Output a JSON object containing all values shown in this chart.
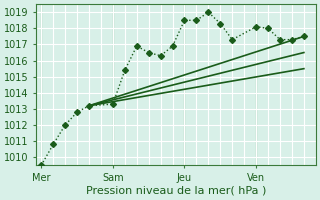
{
  "title": "",
  "xlabel": "Pression niveau de la mer( hPa )",
  "ylabel": "",
  "background_color": "#d8f0e8",
  "grid_color": "#ffffff",
  "line_color": "#1a5c1a",
  "ylim": [
    1009.5,
    1019.5
  ],
  "day_labels": [
    "Mer",
    "Sam",
    "Jeu",
    "Ven"
  ],
  "day_positions": [
    0,
    3,
    6,
    9
  ],
  "series": [
    {
      "x": [
        0,
        0.5,
        1.0,
        1.5,
        2.0,
        3.0,
        3.5,
        4.0,
        4.5,
        5.0,
        5.5,
        6.0,
        6.5,
        7.0,
        7.5,
        8.0,
        9.0,
        9.5,
        10.0,
        10.5,
        11.0
      ],
      "y": [
        1009.5,
        1010.8,
        1012.0,
        1012.8,
        1013.2,
        1013.3,
        1015.4,
        1016.9,
        1016.5,
        1016.3,
        1016.9,
        1018.5,
        1018.5,
        1019.0,
        1018.3,
        1017.3,
        1018.1,
        1018.0,
        1017.3,
        1017.3,
        1017.5
      ],
      "style": "dotted",
      "marker": "D",
      "markersize": 3,
      "linewidth": 1.0
    },
    {
      "x": [
        2.0,
        11.0
      ],
      "y": [
        1013.2,
        1017.5
      ],
      "style": "solid",
      "marker": null,
      "markersize": 0,
      "linewidth": 1.2
    },
    {
      "x": [
        2.0,
        11.0
      ],
      "y": [
        1013.2,
        1016.5
      ],
      "style": "solid",
      "marker": null,
      "markersize": 0,
      "linewidth": 1.2
    },
    {
      "x": [
        2.0,
        11.0
      ],
      "y": [
        1013.2,
        1015.5
      ],
      "style": "solid",
      "marker": null,
      "markersize": 0,
      "linewidth": 1.2
    }
  ],
  "vline_positions": [
    0,
    3,
    6,
    9
  ],
  "yticks": [
    1010,
    1011,
    1012,
    1013,
    1014,
    1015,
    1016,
    1017,
    1018,
    1019
  ],
  "xlim": [
    -0.2,
    11.5
  ]
}
